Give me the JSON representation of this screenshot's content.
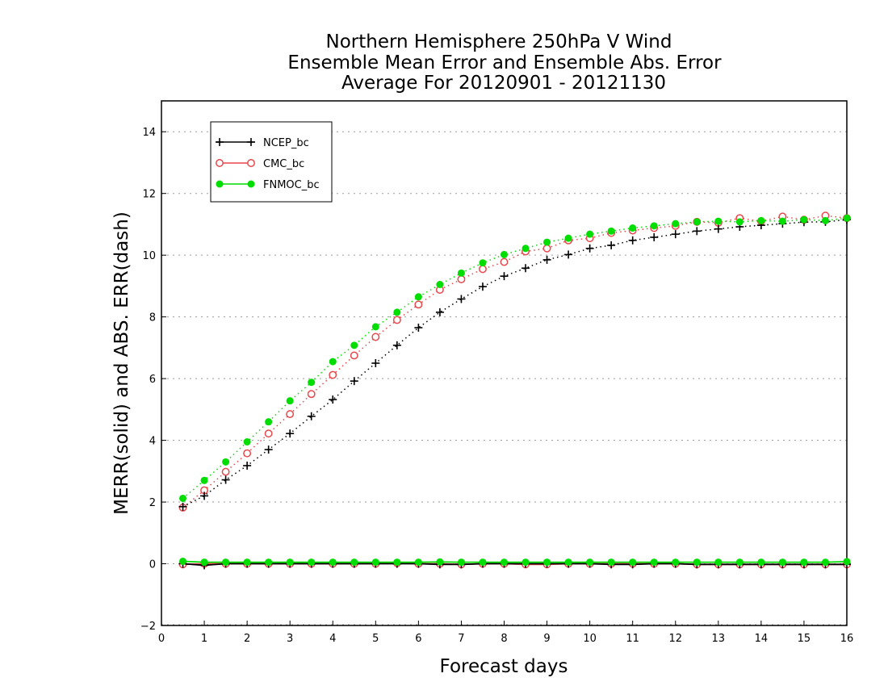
{
  "chart_data": {
    "type": "line",
    "title": [
      "Northern Hemisphere 250hPa V Wind",
      "Ensemble Mean Error and Ensemble Abs. Error",
      "Average For 20120901 - 20121130"
    ],
    "xlabel": "Forecast days",
    "ylabel": "MERR(solid) and ABS. ERR(dash)",
    "xlim": [
      0,
      16
    ],
    "ylim": [
      -2,
      15
    ],
    "xticks": [
      0,
      1,
      2,
      3,
      4,
      5,
      6,
      7,
      8,
      9,
      10,
      11,
      12,
      13,
      14,
      15,
      16
    ],
    "yticks": [
      -2,
      0,
      2,
      4,
      6,
      8,
      10,
      12,
      14
    ],
    "grid": "horizontal dotted",
    "legend_position": "top-left",
    "x": [
      0.5,
      1,
      1.5,
      2,
      2.5,
      3,
      3.5,
      4,
      4.5,
      5,
      5.5,
      6,
      6.5,
      7,
      7.5,
      8,
      8.5,
      9,
      9.5,
      10,
      10.5,
      11,
      11.5,
      12,
      12.5,
      13,
      13.5,
      14,
      14.5,
      15,
      15.5,
      16
    ],
    "series": [
      {
        "name": "NCEP_bc",
        "color": "#000000",
        "marker": "plus",
        "abs_error": [
          1.85,
          2.2,
          2.72,
          3.18,
          3.7,
          4.22,
          4.78,
          5.32,
          5.92,
          6.5,
          7.08,
          7.65,
          8.15,
          8.58,
          8.98,
          9.32,
          9.58,
          9.85,
          10.02,
          10.22,
          10.32,
          10.48,
          10.58,
          10.68,
          10.78,
          10.85,
          10.92,
          10.97,
          11.02,
          11.07,
          11.08,
          11.15
        ],
        "mean_error": [
          0.0,
          -0.05,
          0.0,
          0.0,
          0.0,
          0.0,
          0.0,
          0.0,
          0.0,
          0.0,
          0.0,
          0.0,
          -0.02,
          -0.02,
          0.0,
          0.0,
          0.0,
          0.0,
          0.0,
          0.0,
          -0.02,
          -0.02,
          0.0,
          0.0,
          -0.02,
          -0.02,
          -0.02,
          -0.02,
          -0.02,
          -0.02,
          -0.02,
          -0.02
        ]
      },
      {
        "name": "CMC_bc",
        "color": "#e8474c",
        "marker": "open-circle",
        "abs_error": [
          1.82,
          2.38,
          2.98,
          3.58,
          4.22,
          4.85,
          5.5,
          6.12,
          6.75,
          7.35,
          7.9,
          8.4,
          8.88,
          9.22,
          9.55,
          9.78,
          10.12,
          10.22,
          10.48,
          10.55,
          10.72,
          10.8,
          10.88,
          10.95,
          11.08,
          11.05,
          11.2,
          11.1,
          11.25,
          11.15,
          11.28,
          11.2
        ],
        "mean_error": [
          -0.02,
          0.0,
          0.0,
          0.0,
          0.0,
          0.0,
          0.0,
          0.0,
          0.0,
          0.0,
          0.02,
          0.0,
          0.0,
          -0.02,
          0.0,
          0.0,
          -0.02,
          -0.02,
          0.0,
          0.0,
          0.0,
          0.0,
          0.0,
          0.0,
          -0.02,
          -0.02,
          -0.02,
          -0.02,
          -0.02,
          -0.02,
          -0.02,
          -0.02
        ]
      },
      {
        "name": "FNMOC_bc",
        "color": "#00dd00",
        "marker": "filled-circle",
        "abs_error": [
          2.12,
          2.7,
          3.3,
          3.95,
          4.6,
          5.28,
          5.88,
          6.55,
          7.08,
          7.68,
          8.15,
          8.65,
          9.05,
          9.42,
          9.75,
          10.02,
          10.22,
          10.42,
          10.55,
          10.68,
          10.78,
          10.88,
          10.95,
          11.02,
          11.08,
          11.1,
          11.08,
          11.12,
          11.1,
          11.15,
          11.12,
          11.2
        ],
        "mean_error": [
          0.08,
          0.05,
          0.05,
          0.05,
          0.05,
          0.05,
          0.05,
          0.05,
          0.05,
          0.05,
          0.05,
          0.05,
          0.06,
          0.05,
          0.05,
          0.05,
          0.05,
          0.05,
          0.05,
          0.05,
          0.05,
          0.05,
          0.05,
          0.05,
          0.05,
          0.05,
          0.05,
          0.05,
          0.05,
          0.05,
          0.05,
          0.07
        ]
      }
    ]
  }
}
